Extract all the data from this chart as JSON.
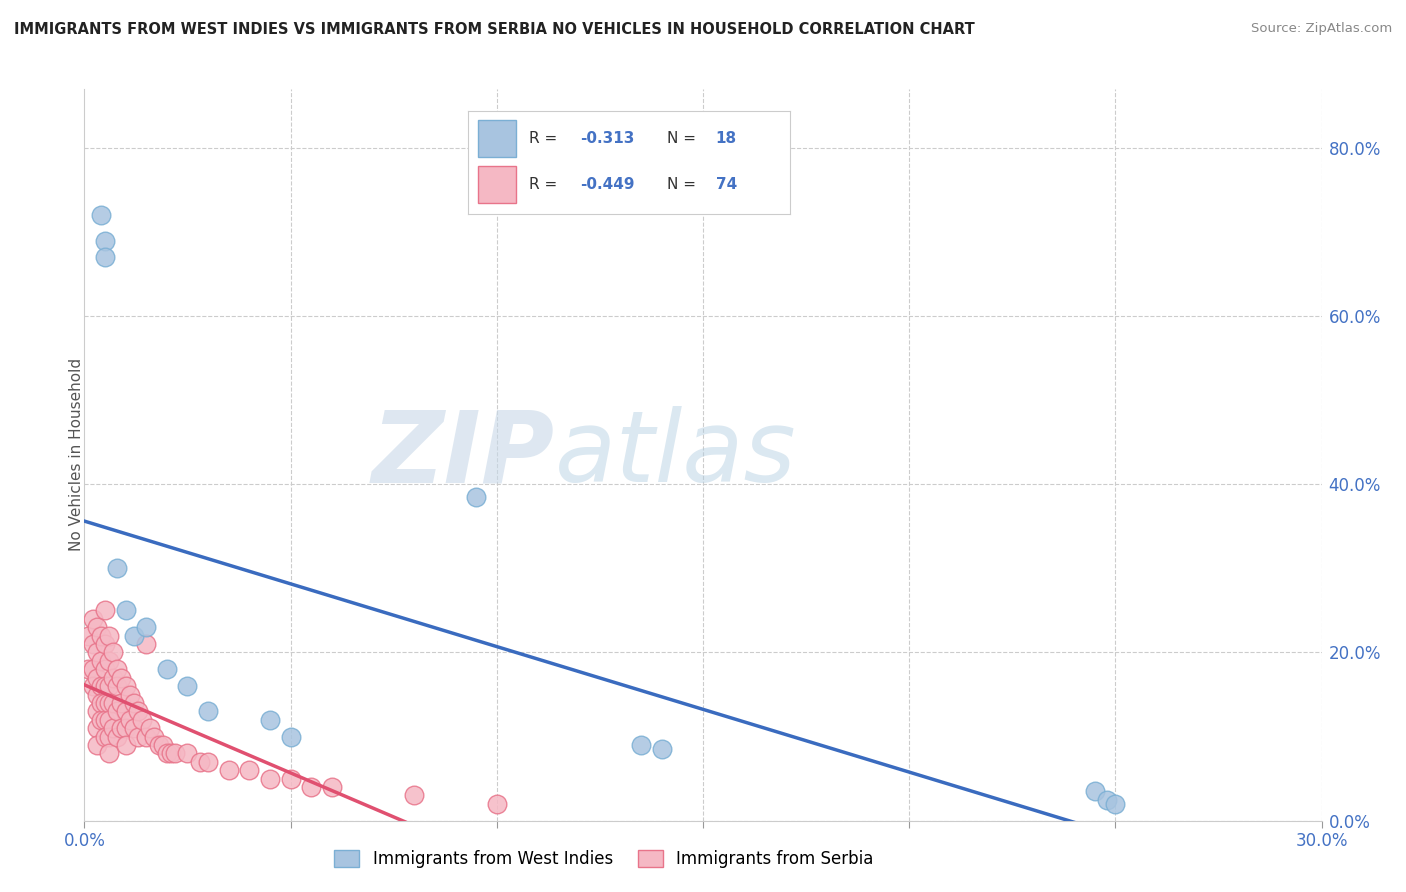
{
  "title": "IMMIGRANTS FROM WEST INDIES VS IMMIGRANTS FROM SERBIA NO VEHICLES IN HOUSEHOLD CORRELATION CHART",
  "source": "Source: ZipAtlas.com",
  "ylabel": "No Vehicles in Household",
  "xlim": [
    0.0,
    0.3
  ],
  "ylim": [
    0.0,
    0.87
  ],
  "xticks": [
    0.0,
    0.05,
    0.1,
    0.15,
    0.2,
    0.25,
    0.3
  ],
  "xtick_labels": [
    "0.0%",
    "",
    "",
    "",
    "",
    "",
    "30.0%"
  ],
  "ytick_labels_right": [
    "0.0%",
    "20.0%",
    "40.0%",
    "60.0%",
    "80.0%"
  ],
  "yticks_right": [
    0.0,
    0.2,
    0.4,
    0.6,
    0.8
  ],
  "west_indies_color": "#a8c4e0",
  "west_indies_edge_color": "#7bafd4",
  "serbia_color": "#f5b8c4",
  "serbia_edge_color": "#e8748a",
  "regression_blue_color": "#3a6bbf",
  "regression_pink_color": "#e05070",
  "watermark_zip": "ZIP",
  "watermark_atlas": "atlas",
  "legend_label_1": "Immigrants from West Indies",
  "legend_label_2": "Immigrants from Serbia",
  "west_indies_x": [
    0.004,
    0.005,
    0.005,
    0.008,
    0.01,
    0.012,
    0.015,
    0.02,
    0.025,
    0.03,
    0.045,
    0.05,
    0.095,
    0.135,
    0.14,
    0.245,
    0.248,
    0.25
  ],
  "west_indies_y": [
    0.72,
    0.69,
    0.67,
    0.3,
    0.25,
    0.22,
    0.23,
    0.18,
    0.16,
    0.13,
    0.12,
    0.1,
    0.385,
    0.09,
    0.085,
    0.035,
    0.025,
    0.02
  ],
  "serbia_x": [
    0.001,
    0.001,
    0.002,
    0.002,
    0.002,
    0.002,
    0.003,
    0.003,
    0.003,
    0.003,
    0.003,
    0.003,
    0.003,
    0.004,
    0.004,
    0.004,
    0.004,
    0.004,
    0.005,
    0.005,
    0.005,
    0.005,
    0.005,
    0.005,
    0.005,
    0.006,
    0.006,
    0.006,
    0.006,
    0.006,
    0.006,
    0.006,
    0.007,
    0.007,
    0.007,
    0.007,
    0.008,
    0.008,
    0.008,
    0.008,
    0.009,
    0.009,
    0.009,
    0.01,
    0.01,
    0.01,
    0.01,
    0.011,
    0.011,
    0.012,
    0.012,
    0.013,
    0.013,
    0.014,
    0.015,
    0.015,
    0.016,
    0.017,
    0.018,
    0.019,
    0.02,
    0.021,
    0.022,
    0.025,
    0.028,
    0.03,
    0.035,
    0.04,
    0.045,
    0.05,
    0.055,
    0.06,
    0.08,
    0.1
  ],
  "serbia_y": [
    0.22,
    0.18,
    0.24,
    0.21,
    0.18,
    0.16,
    0.23,
    0.2,
    0.17,
    0.15,
    0.13,
    0.11,
    0.09,
    0.22,
    0.19,
    0.16,
    0.14,
    0.12,
    0.25,
    0.21,
    0.18,
    0.16,
    0.14,
    0.12,
    0.1,
    0.22,
    0.19,
    0.16,
    0.14,
    0.12,
    0.1,
    0.08,
    0.2,
    0.17,
    0.14,
    0.11,
    0.18,
    0.16,
    0.13,
    0.1,
    0.17,
    0.14,
    0.11,
    0.16,
    0.13,
    0.11,
    0.09,
    0.15,
    0.12,
    0.14,
    0.11,
    0.13,
    0.1,
    0.12,
    0.21,
    0.1,
    0.11,
    0.1,
    0.09,
    0.09,
    0.08,
    0.08,
    0.08,
    0.08,
    0.07,
    0.07,
    0.06,
    0.06,
    0.05,
    0.05,
    0.04,
    0.04,
    0.03,
    0.02
  ]
}
